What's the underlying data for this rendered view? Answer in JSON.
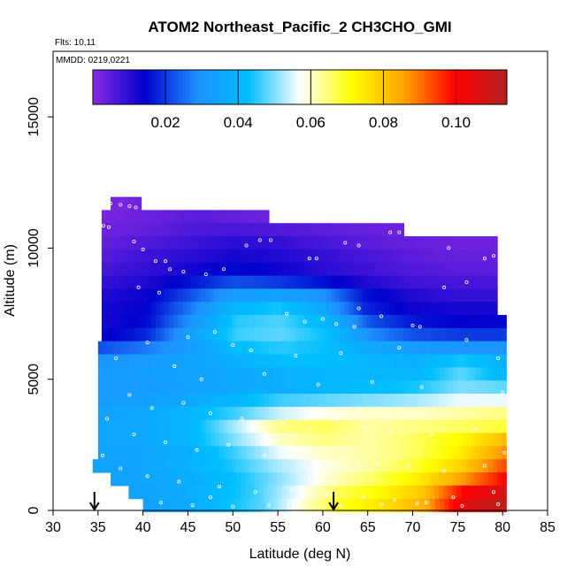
{
  "chart_data": {
    "type": "heatmap",
    "title": "ATOM2 Northeast_Pacific_2 CH3CHO_GMI",
    "flights_label": "Flts: 10,11",
    "mmdd_label": "MMDD: 0219,0221",
    "xlabel": "Latitude (deg N)",
    "ylabel": "Altitude (m)",
    "xlim": [
      30,
      85
    ],
    "ylim": [
      0,
      17500
    ],
    "x_ticks": [
      "30",
      "35",
      "40",
      "45",
      "50",
      "55",
      "60",
      "65",
      "70",
      "75",
      "80",
      "85"
    ],
    "y_ticks": [
      "0",
      "5000",
      "10000",
      "15000"
    ],
    "colorbar": {
      "min": 0.0,
      "max": 0.114,
      "ticks": [
        "0.02",
        "0.04",
        "0.06",
        "0.08",
        "0.10"
      ],
      "colors": [
        "#8a2be2",
        "#0000cd",
        "#1e90ff",
        "#00bfff",
        "#ffffff",
        "#ffff00",
        "#ffa500",
        "#ff0000",
        "#b22222"
      ]
    },
    "field_rows": [
      {
        "alt": 11700,
        "lat_min": 36.4,
        "lat_max": 39.8,
        "values": [
          0.002,
          0.002,
          0.003
        ]
      },
      {
        "alt": 11200,
        "lat_min": 35.4,
        "lat_max": 54.0,
        "values": [
          0.002,
          0.003,
          0.004,
          0.005,
          0.004,
          0.003
        ]
      },
      {
        "alt": 10700,
        "lat_min": 35.4,
        "lat_max": 69.0,
        "values": [
          0.003,
          0.004,
          0.006,
          0.007,
          0.006,
          0.005,
          0.004,
          0.003
        ]
      },
      {
        "alt": 10200,
        "lat_min": 35.4,
        "lat_max": 79.4,
        "values": [
          0.004,
          0.006,
          0.008,
          0.01,
          0.009,
          0.007,
          0.005,
          0.004,
          0.003,
          0.003
        ]
      },
      {
        "alt": 9700,
        "lat_min": 35.4,
        "lat_max": 79.4,
        "values": [
          0.005,
          0.008,
          0.01,
          0.012,
          0.011,
          0.009,
          0.007,
          0.005,
          0.004,
          0.004
        ]
      },
      {
        "alt": 9200,
        "lat_min": 35.4,
        "lat_max": 79.4,
        "values": [
          0.007,
          0.009,
          0.012,
          0.015,
          0.013,
          0.01,
          0.008,
          0.006,
          0.005,
          0.005
        ]
      },
      {
        "alt": 8700,
        "lat_min": 35.4,
        "lat_max": 79.4,
        "values": [
          0.009,
          0.011,
          0.016,
          0.022,
          0.02,
          0.016,
          0.011,
          0.008,
          0.007,
          0.007
        ]
      },
      {
        "alt": 8200,
        "lat_min": 35.4,
        "lat_max": 79.4,
        "values": [
          0.011,
          0.013,
          0.022,
          0.032,
          0.034,
          0.03,
          0.016,
          0.011,
          0.009,
          0.009
        ]
      },
      {
        "alt": 7700,
        "lat_min": 35.4,
        "lat_max": 79.4,
        "values": [
          0.012,
          0.014,
          0.026,
          0.04,
          0.044,
          0.036,
          0.018,
          0.013,
          0.012,
          0.012
        ]
      },
      {
        "alt": 7200,
        "lat_min": 35.4,
        "lat_max": 80.4,
        "values": [
          0.012,
          0.015,
          0.03,
          0.045,
          0.047,
          0.04,
          0.022,
          0.016,
          0.014,
          0.014
        ]
      },
      {
        "alt": 6700,
        "lat_min": 35.4,
        "lat_max": 80.4,
        "values": [
          0.013,
          0.018,
          0.034,
          0.046,
          0.048,
          0.043,
          0.028,
          0.022,
          0.02,
          0.02
        ]
      },
      {
        "alt": 6200,
        "lat_min": 35.0,
        "lat_max": 80.4,
        "values": [
          0.022,
          0.026,
          0.032,
          0.042,
          0.045,
          0.043,
          0.036,
          0.032,
          0.03,
          0.03
        ]
      },
      {
        "alt": 5700,
        "lat_min": 35.0,
        "lat_max": 80.4,
        "values": [
          0.03,
          0.032,
          0.034,
          0.038,
          0.042,
          0.042,
          0.04,
          0.038,
          0.044,
          0.038
        ]
      },
      {
        "alt": 5200,
        "lat_min": 35.0,
        "lat_max": 80.4,
        "values": [
          0.032,
          0.033,
          0.034,
          0.036,
          0.038,
          0.04,
          0.04,
          0.04,
          0.048,
          0.04
        ]
      },
      {
        "alt": 4700,
        "lat_min": 35.0,
        "lat_max": 80.4,
        "values": [
          0.032,
          0.032,
          0.034,
          0.036,
          0.038,
          0.04,
          0.042,
          0.044,
          0.05,
          0.048
        ]
      },
      {
        "alt": 4200,
        "lat_min": 35.0,
        "lat_max": 80.4,
        "values": [
          0.032,
          0.033,
          0.036,
          0.04,
          0.046,
          0.048,
          0.05,
          0.052,
          0.056,
          0.056
        ]
      },
      {
        "alt": 3700,
        "lat_min": 35.0,
        "lat_max": 80.4,
        "values": [
          0.034,
          0.036,
          0.04,
          0.046,
          0.054,
          0.058,
          0.06,
          0.06,
          0.062,
          0.064
        ]
      },
      {
        "alt": 3200,
        "lat_min": 35.0,
        "lat_max": 80.4,
        "values": [
          0.035,
          0.036,
          0.04,
          0.052,
          0.064,
          0.066,
          0.062,
          0.064,
          0.066,
          0.068
        ]
      },
      {
        "alt": 2700,
        "lat_min": 35.0,
        "lat_max": 80.4,
        "values": [
          0.035,
          0.036,
          0.04,
          0.05,
          0.06,
          0.064,
          0.062,
          0.066,
          0.072,
          0.082
        ]
      },
      {
        "alt": 2200,
        "lat_min": 35.0,
        "lat_max": 80.4,
        "values": [
          0.034,
          0.035,
          0.038,
          0.046,
          0.056,
          0.06,
          0.062,
          0.066,
          0.074,
          0.088
        ]
      },
      {
        "alt": 1700,
        "lat_min": 34.4,
        "lat_max": 80.4,
        "values": [
          0.034,
          0.035,
          0.038,
          0.044,
          0.052,
          0.058,
          0.062,
          0.068,
          0.078,
          0.094
        ]
      },
      {
        "alt": 1200,
        "lat_min": 36.4,
        "lat_max": 80.4,
        "values": [
          0.034,
          0.035,
          0.038,
          0.044,
          0.052,
          0.06,
          0.066,
          0.074,
          0.086,
          0.1
        ]
      },
      {
        "alt": 700,
        "lat_min": 38.4,
        "lat_max": 80.4,
        "values": [
          0.034,
          0.036,
          0.04,
          0.046,
          0.056,
          0.066,
          0.072,
          0.08,
          0.1,
          0.108
        ]
      },
      {
        "alt": 200,
        "lat_min": 40.0,
        "lat_max": 80.4,
        "values": [
          0.034,
          0.036,
          0.042,
          0.048,
          0.06,
          0.07,
          0.076,
          0.084,
          0.106,
          0.112
        ]
      }
    ],
    "sample_points": [
      [
        36.4,
        11700
      ],
      [
        37.5,
        11650
      ],
      [
        38.5,
        11600
      ],
      [
        39.2,
        11550
      ],
      [
        35.6,
        10850
      ],
      [
        36.2,
        10800
      ],
      [
        53.0,
        10300
      ],
      [
        54.2,
        10300
      ],
      [
        67.5,
        10600
      ],
      [
        68.5,
        10600
      ],
      [
        69.8,
        10550
      ],
      [
        39.0,
        10250
      ],
      [
        40.0,
        9950
      ],
      [
        41.4,
        9500
      ],
      [
        42.5,
        9500
      ],
      [
        51.5,
        10100
      ],
      [
        58.5,
        9600
      ],
      [
        59.3,
        9600
      ],
      [
        62.5,
        10200
      ],
      [
        64.0,
        10100
      ],
      [
        74.0,
        10000
      ],
      [
        78.0,
        9600
      ],
      [
        79.0,
        9700
      ],
      [
        41.8,
        8300
      ],
      [
        43.0,
        9200
      ],
      [
        44.5,
        9100
      ],
      [
        47.0,
        9000
      ],
      [
        49.0,
        9200
      ],
      [
        73.5,
        8500
      ],
      [
        76.0,
        8700
      ],
      [
        39.5,
        8500
      ],
      [
        64.0,
        7700
      ],
      [
        66.5,
        7400
      ],
      [
        70.0,
        7050
      ],
      [
        70.8,
        7000
      ],
      [
        56.0,
        7500
      ],
      [
        58.0,
        7200
      ],
      [
        60.0,
        7300
      ],
      [
        61.5,
        7100
      ],
      [
        63.5,
        7000
      ],
      [
        40.5,
        6400
      ],
      [
        45.0,
        6600
      ],
      [
        48.0,
        6800
      ],
      [
        50.0,
        6300
      ],
      [
        52.0,
        6100
      ],
      [
        57.0,
        5900
      ],
      [
        62.0,
        6000
      ],
      [
        68.5,
        6200
      ],
      [
        76.0,
        6500
      ],
      [
        79.5,
        5800
      ],
      [
        37.0,
        5800
      ],
      [
        43.5,
        5500
      ],
      [
        46.5,
        5000
      ],
      [
        53.5,
        5200
      ],
      [
        59.5,
        4800
      ],
      [
        65.5,
        4900
      ],
      [
        71.0,
        4700
      ],
      [
        75.5,
        4200
      ],
      [
        80.0,
        4500
      ],
      [
        38.5,
        4400
      ],
      [
        41.0,
        3900
      ],
      [
        44.5,
        4100
      ],
      [
        47.5,
        3700
      ],
      [
        51.0,
        3500
      ],
      [
        55.5,
        3300
      ],
      [
        58.5,
        3100
      ],
      [
        61.5,
        3400
      ],
      [
        64.5,
        3200
      ],
      [
        67.5,
        3000
      ],
      [
        72.0,
        2900
      ],
      [
        77.0,
        3100
      ],
      [
        36.0,
        3500
      ],
      [
        39.0,
        2900
      ],
      [
        42.5,
        2600
      ],
      [
        46.0,
        2300
      ],
      [
        49.5,
        2500
      ],
      [
        53.5,
        2100
      ],
      [
        57.5,
        2300
      ],
      [
        62.5,
        2000
      ],
      [
        66.0,
        1800
      ],
      [
        69.5,
        1700
      ],
      [
        73.5,
        1500
      ],
      [
        78.0,
        1700
      ],
      [
        80.2,
        2200
      ],
      [
        35.5,
        2100
      ],
      [
        37.5,
        1600
      ],
      [
        40.5,
        1300
      ],
      [
        44.0,
        1100
      ],
      [
        48.5,
        900
      ],
      [
        52.5,
        700
      ],
      [
        56.5,
        800
      ],
      [
        60.5,
        600
      ],
      [
        64.5,
        500
      ],
      [
        68.0,
        400
      ],
      [
        71.5,
        300
      ],
      [
        74.5,
        500
      ],
      [
        79.0,
        700
      ],
      [
        42.0,
        300
      ],
      [
        45.5,
        200
      ],
      [
        50.0,
        150
      ],
      [
        54.0,
        200
      ],
      [
        58.0,
        250
      ],
      [
        62.0,
        180
      ],
      [
        66.5,
        220
      ],
      [
        70.5,
        260
      ],
      [
        75.5,
        180
      ],
      [
        79.5,
        240
      ],
      [
        47.5,
        500
      ]
    ],
    "arrows": [
      34.6,
      61.2
    ]
  }
}
